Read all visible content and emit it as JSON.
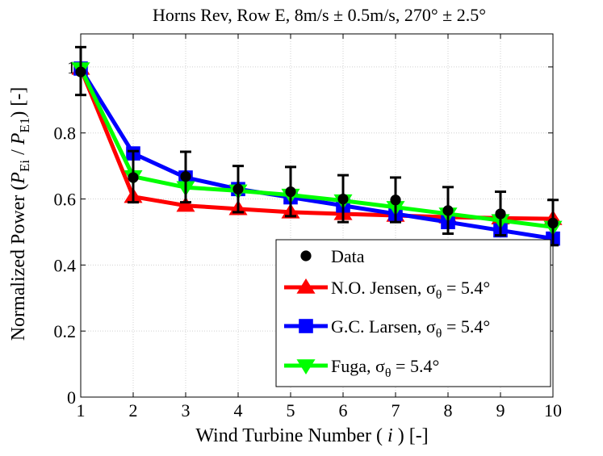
{
  "chart_data": {
    "type": "line",
    "title": "Horns Rev, Row E, 8m/s ± 0.5m/s, 270° ± 2.5°",
    "xlabel": {
      "prefix": "Wind Turbine Number (",
      "var": "i",
      "suffix": ") [-]"
    },
    "ylabel": {
      "prefix": "Normalized Power (",
      "num": "P",
      "num_sub": "Ei",
      "slash": " / ",
      "den": "P",
      "den_sub": "E1",
      "suffix": ")  [-]"
    },
    "xlim": [
      1,
      10
    ],
    "ylim": [
      0,
      1.1
    ],
    "x": [
      1,
      2,
      3,
      4,
      5,
      6,
      7,
      8,
      9,
      10
    ],
    "xticks": [
      "1",
      "2",
      "3",
      "4",
      "5",
      "6",
      "7",
      "8",
      "9",
      "10"
    ],
    "yticks": [
      {
        "value": 0,
        "label": "0"
      },
      {
        "value": 0.2,
        "label": "0.2"
      },
      {
        "value": 0.4,
        "label": "0.4"
      },
      {
        "value": 0.6,
        "label": "0.6"
      },
      {
        "value": 0.8,
        "label": "0.8"
      },
      {
        "value": 1.0,
        "label": "1"
      }
    ],
    "grid": true,
    "legend_position": "bottom-right",
    "series": [
      {
        "name": "Data",
        "kind": "points_errorbars",
        "color": "#000000",
        "marker": "circle",
        "values": [
          0.985,
          0.665,
          0.668,
          0.63,
          0.622,
          0.6,
          0.597,
          0.565,
          0.555,
          0.527
        ],
        "error_low": [
          0.915,
          0.59,
          0.59,
          0.56,
          0.548,
          0.53,
          0.53,
          0.495,
          0.49,
          0.46
        ],
        "error_high": [
          1.06,
          0.745,
          0.743,
          0.7,
          0.697,
          0.672,
          0.665,
          0.636,
          0.622,
          0.597
        ]
      },
      {
        "name": "N.O. Jensen",
        "sigma_label": "5.4°",
        "kind": "line",
        "color": "#ff0000",
        "marker": "triangle-up",
        "values": [
          0.995,
          0.607,
          0.58,
          0.57,
          0.56,
          0.555,
          0.55,
          0.545,
          0.542,
          0.54
        ]
      },
      {
        "name": "G.C. Larsen",
        "sigma_label": "5.4°",
        "kind": "line",
        "color": "#0000ff",
        "marker": "square",
        "values": [
          0.995,
          0.738,
          0.665,
          0.63,
          0.605,
          0.58,
          0.555,
          0.53,
          0.505,
          0.48
        ]
      },
      {
        "name": "Fuga",
        "sigma_label": "5.4°",
        "kind": "line",
        "color": "#00ff00",
        "marker": "triangle-down",
        "values": [
          0.995,
          0.668,
          0.635,
          0.625,
          0.612,
          0.595,
          0.575,
          0.555,
          0.535,
          0.515
        ]
      }
    ],
    "legend": {
      "sigma_symbol": "σ",
      "sigma_sub": "θ",
      "equals": " = "
    }
  }
}
